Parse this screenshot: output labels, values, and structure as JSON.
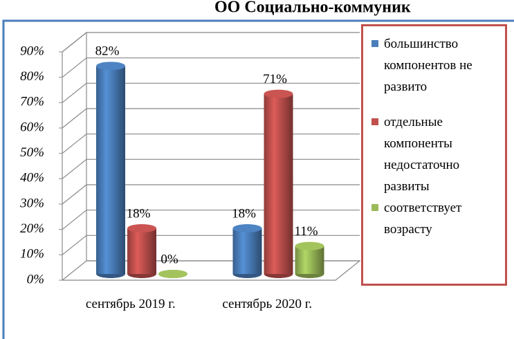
{
  "chart_data": {
    "type": "bar3d",
    "title": "ОО Социально-коммуник",
    "categories": [
      "сентябрь 2019 г.",
      "сентябрь 2020 г."
    ],
    "series": [
      {
        "name": "большинство компонентов не развито",
        "color": "#4a7ebb",
        "values": [
          82,
          18
        ],
        "value_labels": [
          "82%",
          "18%"
        ]
      },
      {
        "name": "отдельные компоненты недостаточно развиты",
        "color": "#c0504d",
        "values": [
          18,
          71
        ],
        "value_labels": [
          "18%",
          "71%"
        ]
      },
      {
        "name": "соответствует возрасту",
        "color": "#9bbb59",
        "values": [
          0,
          11
        ],
        "value_labels": [
          "0%",
          "11%"
        ]
      }
    ],
    "ylim": [
      0,
      90
    ],
    "yticks": [
      {
        "value": 0,
        "label": "0%"
      },
      {
        "value": 10,
        "label": "10%"
      },
      {
        "value": 20,
        "label": "20%"
      },
      {
        "value": 30,
        "label": "30%"
      },
      {
        "value": 40,
        "label": "40%"
      },
      {
        "value": 50,
        "label": "50%"
      },
      {
        "value": 60,
        "label": "60%"
      },
      {
        "value": 70,
        "label": "70%"
      },
      {
        "value": 80,
        "label": "80%"
      },
      {
        "value": 90,
        "label": "90%"
      }
    ],
    "grid": true,
    "legend": "right"
  }
}
